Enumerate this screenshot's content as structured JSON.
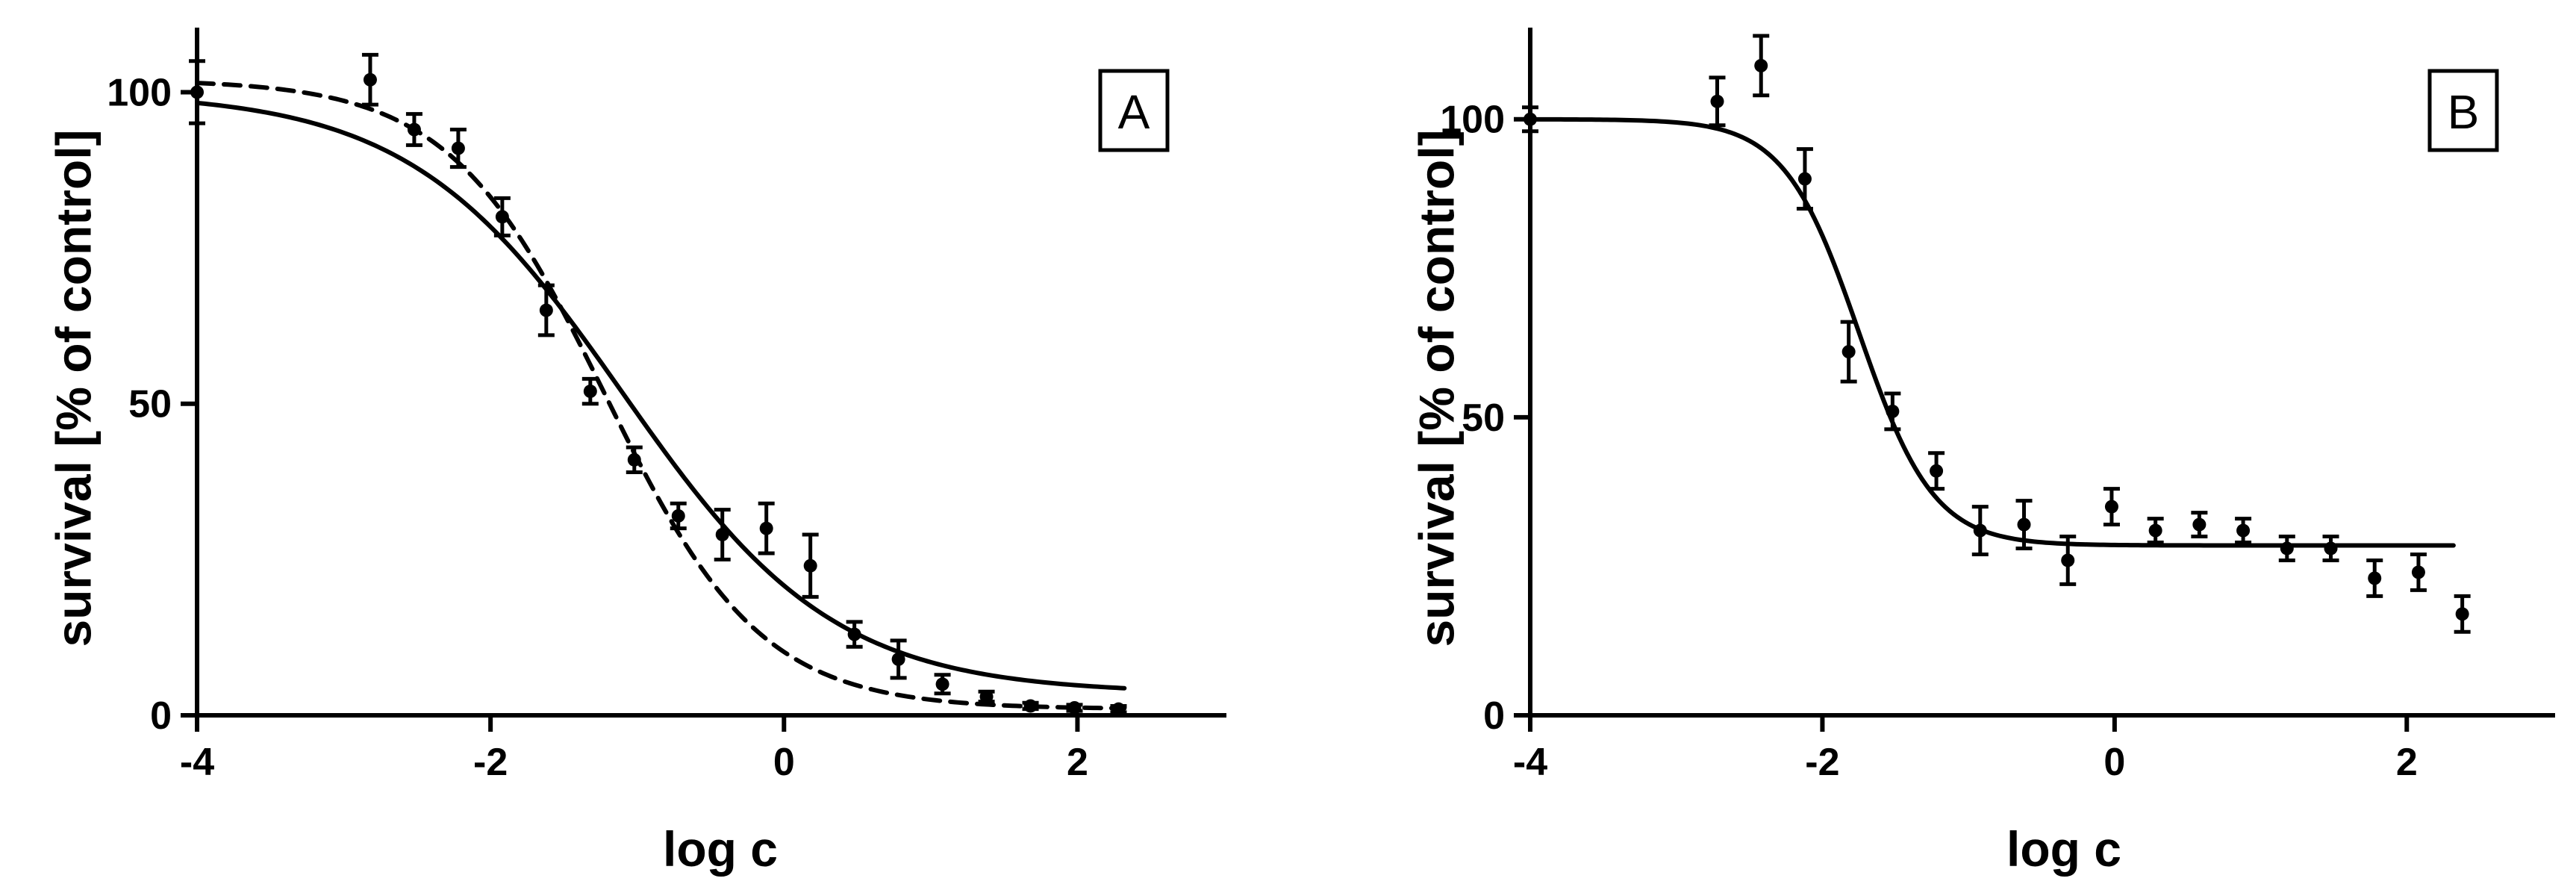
{
  "chart_data": [
    {
      "type": "scatter",
      "panel_label": "A",
      "xlabel": "log c",
      "ylabel": "survival [% of control]",
      "xlim": [
        -4,
        3
      ],
      "ylim": [
        0,
        110
      ],
      "xticks": [
        -4,
        -2,
        0,
        2
      ],
      "yticks": [
        0,
        50,
        100
      ],
      "series": [
        {
          "line_style": "dashed",
          "points": [
            {
              "x": -4.0,
              "y": 100,
              "err": 5
            },
            {
              "x": -2.82,
              "y": 102,
              "err": 4
            },
            {
              "x": -2.52,
              "y": 94,
              "err": 2.5
            },
            {
              "x": -2.22,
              "y": 91,
              "err": 3
            },
            {
              "x": -1.92,
              "y": 80,
              "err": 3
            },
            {
              "x": -1.62,
              "y": 65,
              "err": 4
            },
            {
              "x": -1.32,
              "y": 52,
              "err": 2
            },
            {
              "x": -1.02,
              "y": 41,
              "err": 2
            },
            {
              "x": -0.72,
              "y": 32,
              "err": 2
            },
            {
              "x": -0.42,
              "y": 29,
              "err": 4
            },
            {
              "x": -0.12,
              "y": 30,
              "err": 4
            },
            {
              "x": 0.18,
              "y": 24,
              "err": 5
            },
            {
              "x": 0.48,
              "y": 13,
              "err": 2
            },
            {
              "x": 0.78,
              "y": 9,
              "err": 3
            },
            {
              "x": 1.08,
              "y": 5,
              "err": 1.5
            },
            {
              "x": 1.38,
              "y": 3,
              "err": 0.8
            },
            {
              "x": 1.68,
              "y": 1.5,
              "err": 0.5
            },
            {
              "x": 1.98,
              "y": 1.2,
              "err": 0.5
            },
            {
              "x": 2.28,
              "y": 1,
              "err": 0.5
            }
          ],
          "fit": {
            "top": 102,
            "bottom": 1,
            "logEC50": -1.22,
            "hill": 0.82
          }
        },
        {
          "line_style": "solid",
          "fit": {
            "top": 100,
            "bottom": 3.5,
            "logEC50": -1.1,
            "hill": 0.6
          }
        }
      ]
    },
    {
      "type": "scatter",
      "panel_label": "B",
      "xlabel": "log c",
      "ylabel": "survival [% of control]",
      "xlim": [
        -4,
        3
      ],
      "ylim": [
        0,
        115
      ],
      "xticks": [
        -4,
        -2,
        0,
        2
      ],
      "yticks": [
        0,
        50,
        100
      ],
      "series": [
        {
          "line_style": "solid",
          "points": [
            {
              "x": -4.0,
              "y": 100,
              "err": 2
            },
            {
              "x": -2.72,
              "y": 103,
              "err": 4
            },
            {
              "x": -2.42,
              "y": 109,
              "err": 5
            },
            {
              "x": -2.12,
              "y": 90,
              "err": 5
            },
            {
              "x": -1.82,
              "y": 61,
              "err": 5
            },
            {
              "x": -1.52,
              "y": 51,
              "err": 3
            },
            {
              "x": -1.22,
              "y": 41,
              "err": 3
            },
            {
              "x": -0.92,
              "y": 31,
              "err": 4
            },
            {
              "x": -0.62,
              "y": 32,
              "err": 4
            },
            {
              "x": -0.32,
              "y": 26,
              "err": 4
            },
            {
              "x": -0.02,
              "y": 35,
              "err": 3
            },
            {
              "x": 0.28,
              "y": 31,
              "err": 2
            },
            {
              "x": 0.58,
              "y": 32,
              "err": 2
            },
            {
              "x": 0.88,
              "y": 31,
              "err": 2
            },
            {
              "x": 1.18,
              "y": 28,
              "err": 2
            },
            {
              "x": 1.48,
              "y": 28,
              "err": 2
            },
            {
              "x": 1.78,
              "y": 23,
              "err": 3
            },
            {
              "x": 2.08,
              "y": 24,
              "err": 3
            },
            {
              "x": 2.38,
              "y": 17,
              "err": 3
            }
          ],
          "fit": {
            "top": 100,
            "bottom": 28.5,
            "logEC50": -1.75,
            "hill": 1.7
          }
        }
      ]
    }
  ],
  "colors": {
    "axis": "#000000",
    "markers": "#000000",
    "curve": "#000000",
    "background": "#ffffff"
  }
}
